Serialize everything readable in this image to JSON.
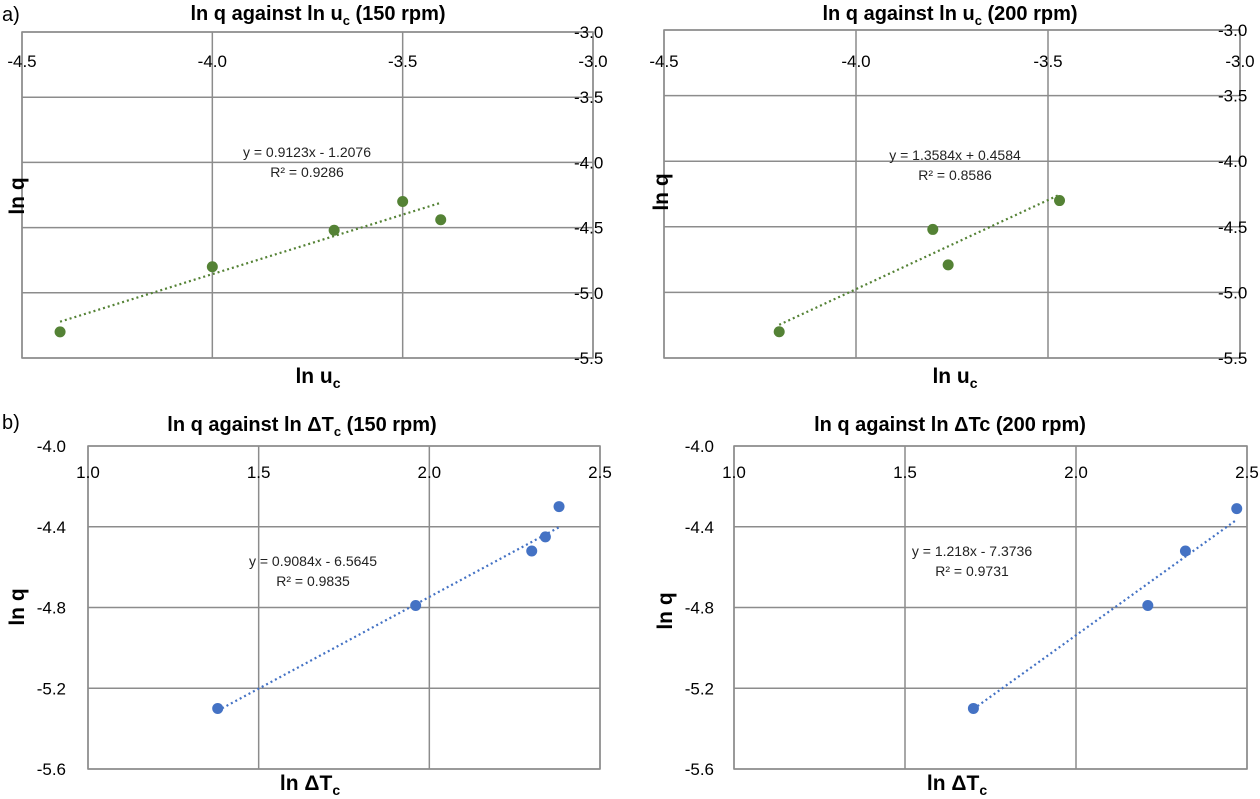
{
  "panel_labels": [
    "a)",
    "b)"
  ],
  "colors": {
    "green": "#548235",
    "blue": "#4472c4",
    "grid": "#8c8c8c"
  },
  "chart_data": [
    {
      "type": "scatter",
      "title": "ln q against ln u",
      "title_sub": "c",
      "title_suffix": " (150 rpm)",
      "xlabel": "ln u",
      "xlabel_sub": "c",
      "ylabel": "ln q",
      "xlim": [
        -4.5,
        -3.0
      ],
      "ylim": [
        -5.5,
        -3.0
      ],
      "xticks": [
        "-4.5",
        "-4.0",
        "-3.5",
        "-3.0"
      ],
      "yticks": [
        "-3.0",
        "-3.5",
        "-4.0",
        "-4.5",
        "-5.0",
        "-5.5"
      ],
      "x_axis_position": "top",
      "y_axis_position": "right",
      "grid": true,
      "marker_color": "#548235",
      "points": [
        {
          "x": -4.4,
          "y": -5.3
        },
        {
          "x": -4.0,
          "y": -4.8
        },
        {
          "x": -3.68,
          "y": -4.52
        },
        {
          "x": -3.5,
          "y": -4.3
        },
        {
          "x": -3.4,
          "y": -4.44
        }
      ],
      "trendline": {
        "slope": 0.9123,
        "intercept": -1.2076,
        "x": [
          -4.4,
          -3.4
        ]
      },
      "equation": "y = 0.9123x - 1.2076",
      "r2": "R² = 0.9286"
    },
    {
      "type": "scatter",
      "title": "ln q against ln u",
      "title_sub": "c",
      "title_suffix": " (200 rpm)",
      "xlabel": "ln u",
      "xlabel_sub": "c",
      "ylabel": "ln q",
      "xlim": [
        -4.5,
        -3.0
      ],
      "ylim": [
        -5.5,
        -3.0
      ],
      "xticks": [
        "-4.5",
        "-4.0",
        "-3.5",
        "-3.0"
      ],
      "yticks": [
        "-3.0",
        "-3.5",
        "-4.0",
        "-4.5",
        "-5.0",
        "-5.5"
      ],
      "x_axis_position": "top",
      "y_axis_position": "right",
      "grid": true,
      "marker_color": "#548235",
      "points": [
        {
          "x": -4.2,
          "y": -5.3
        },
        {
          "x": -3.8,
          "y": -4.52
        },
        {
          "x": -3.76,
          "y": -4.79
        },
        {
          "x": -3.47,
          "y": -4.3
        }
      ],
      "trendline": {
        "slope": 1.3584,
        "intercept": 0.4584,
        "x": [
          -4.2,
          -3.47
        ]
      },
      "equation": "y = 1.3584x + 0.4584",
      "r2": "R² = 0.8586"
    },
    {
      "type": "scatter",
      "title": "ln q against ln ΔT",
      "title_sub": "c",
      "title_suffix": " (150 rpm)",
      "xlabel": "ln ΔT",
      "xlabel_sub": "c",
      "ylabel": "ln q",
      "xlim": [
        1.0,
        2.5
      ],
      "ylim": [
        -5.6,
        -4.0
      ],
      "xticks": [
        "1.0",
        "1.5",
        "2.0",
        "2.5"
      ],
      "yticks": [
        "-4.0",
        "-4.4",
        "-4.8",
        "-5.2",
        "-5.6"
      ],
      "x_axis_position": "top",
      "y_axis_position": "left",
      "grid": true,
      "marker_color": "#4472c4",
      "points": [
        {
          "x": 1.38,
          "y": -5.3
        },
        {
          "x": 1.96,
          "y": -4.79
        },
        {
          "x": 2.3,
          "y": -4.52
        },
        {
          "x": 2.34,
          "y": -4.45
        },
        {
          "x": 2.38,
          "y": -4.3
        }
      ],
      "trendline": {
        "slope": 0.9084,
        "intercept": -6.5645,
        "x": [
          1.38,
          2.38
        ]
      },
      "equation": "y = 0.9084x - 6.5645",
      "r2": "R² = 0.9835"
    },
    {
      "type": "scatter",
      "title": "ln q against ln ΔTc",
      "title_sub": "",
      "title_suffix": " (200 rpm)",
      "xlabel": "ln ΔT",
      "xlabel_sub": "c",
      "ylabel": "ln q",
      "xlim": [
        1.0,
        2.5
      ],
      "ylim": [
        -5.6,
        -4.0
      ],
      "xticks": [
        "1.0",
        "1.5",
        "2.0",
        "2.5"
      ],
      "yticks": [
        "-4.0",
        "-4.4",
        "-4.8",
        "-5.2",
        "-5.6"
      ],
      "x_axis_position": "top",
      "y_axis_position": "left",
      "grid": true,
      "marker_color": "#4472c4",
      "points": [
        {
          "x": 1.7,
          "y": -5.3
        },
        {
          "x": 2.21,
          "y": -4.79
        },
        {
          "x": 2.32,
          "y": -4.52
        },
        {
          "x": 2.47,
          "y": -4.31
        }
      ],
      "trendline": {
        "slope": 1.218,
        "intercept": -7.3736,
        "x": [
          1.7,
          2.47
        ]
      },
      "equation": "y = 1.218x - 7.3736",
      "r2": "R² = 0.9731"
    }
  ]
}
